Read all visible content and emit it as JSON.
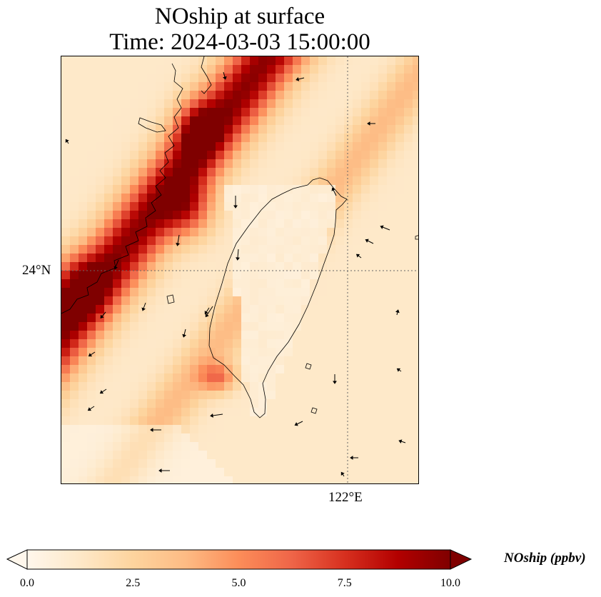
{
  "title": {
    "line1": "NOship at surface",
    "line2": "Time: 2024-03-03 15:00:00"
  },
  "axes": {
    "lat_tick_label": "24°N",
    "lon_tick_label": "122°E",
    "gridlines": "dotted"
  },
  "colorbar": {
    "label": "NOship (ppbv)",
    "min": 0.0,
    "max": 10.0,
    "ticks": [
      "0.0",
      "2.5",
      "5.0",
      "7.5",
      "10.0"
    ],
    "extend": "both",
    "colormap": "OrRd",
    "colors": [
      "#fff7ec",
      "#fee8c8",
      "#fdd49e",
      "#fdbb84",
      "#fc8d59",
      "#ef6548",
      "#d7301f",
      "#b30000",
      "#7f0000"
    ]
  },
  "map": {
    "land_outline_color": "#000000",
    "wind_arrow_color": "#000000"
  }
}
